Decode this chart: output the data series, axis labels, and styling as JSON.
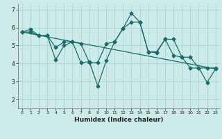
{
  "xlabel": "Humidex (Indice chaleur)",
  "bg_color": "#cceae7",
  "grid_color": "#aad4d0",
  "line_color": "#1a6b6b",
  "xlim": [
    -0.5,
    23.5
  ],
  "ylim": [
    1.5,
    7.3
  ],
  "yticks": [
    2,
    3,
    4,
    5,
    6,
    7
  ],
  "xticks": [
    0,
    1,
    2,
    3,
    4,
    5,
    6,
    7,
    8,
    9,
    10,
    11,
    12,
    13,
    14,
    15,
    16,
    17,
    18,
    19,
    20,
    21,
    22,
    23
  ],
  "line1_x": [
    0,
    1,
    2,
    3,
    4,
    5,
    6,
    7,
    8,
    9,
    10,
    11,
    12,
    13,
    14,
    15,
    16,
    17,
    18,
    19,
    20,
    21,
    22,
    23
  ],
  "line1_y": [
    5.75,
    5.9,
    5.55,
    5.55,
    4.2,
    5.0,
    5.2,
    4.05,
    4.1,
    2.75,
    4.15,
    5.2,
    5.95,
    6.8,
    6.3,
    4.65,
    4.6,
    5.35,
    4.45,
    4.35,
    3.75,
    3.75,
    2.95,
    3.7
  ],
  "line2_x": [
    0,
    1,
    2,
    3,
    4,
    5,
    6,
    7,
    8,
    9,
    10,
    11,
    12,
    13,
    14,
    15,
    16,
    17,
    18,
    19,
    20,
    21,
    22,
    23
  ],
  "line2_y": [
    5.75,
    5.75,
    5.55,
    5.55,
    4.9,
    5.2,
    5.2,
    5.1,
    4.05,
    4.05,
    5.1,
    5.2,
    5.95,
    6.3,
    6.3,
    4.65,
    4.65,
    5.35,
    5.35,
    4.35,
    4.35,
    3.75,
    3.75,
    3.75
  ],
  "line3_x": [
    0,
    23
  ],
  "line3_y": [
    5.75,
    3.7
  ]
}
